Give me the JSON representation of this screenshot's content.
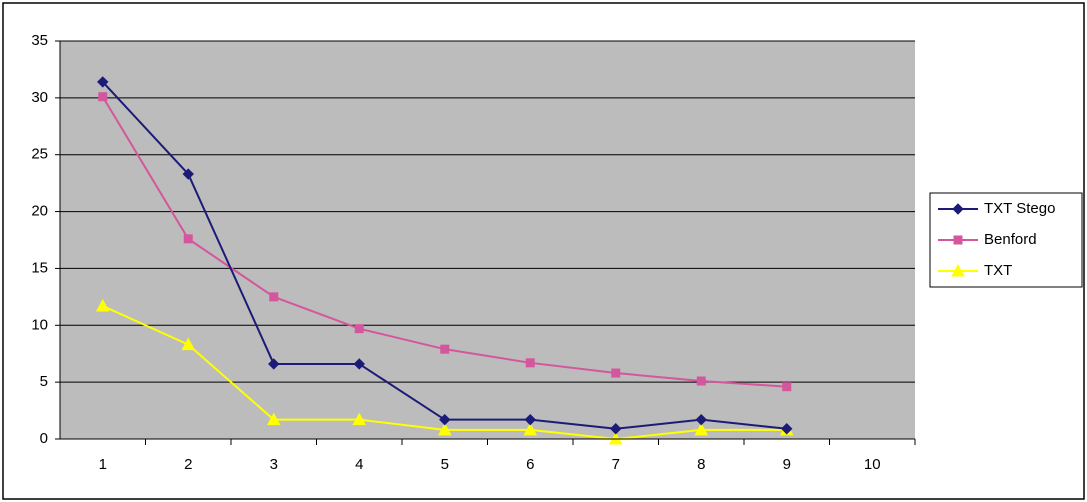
{
  "chart_data": {
    "type": "line",
    "categories": [
      "1",
      "2",
      "3",
      "4",
      "5",
      "6",
      "7",
      "8",
      "9",
      "10"
    ],
    "series": [
      {
        "name": "TXT Stego",
        "color": "#1c1c78",
        "marker": "diamond",
        "values": [
          31.4,
          23.3,
          6.6,
          6.6,
          1.7,
          1.7,
          0.9,
          1.7,
          0.9,
          null
        ]
      },
      {
        "name": "Benford",
        "color": "#d4569c",
        "marker": "square",
        "values": [
          30.1,
          17.6,
          12.5,
          9.7,
          7.9,
          6.7,
          5.8,
          5.1,
          4.6,
          null
        ]
      },
      {
        "name": "TXT",
        "color": "#ffff00",
        "marker": "triangle",
        "values": [
          11.7,
          8.3,
          1.7,
          1.7,
          0.8,
          0.8,
          0,
          0.8,
          0.8,
          null
        ]
      }
    ],
    "ylim": [
      0,
      35
    ],
    "yticks": [
      0,
      5,
      10,
      15,
      20,
      25,
      30,
      35
    ],
    "grid": true,
    "legend": "right"
  }
}
